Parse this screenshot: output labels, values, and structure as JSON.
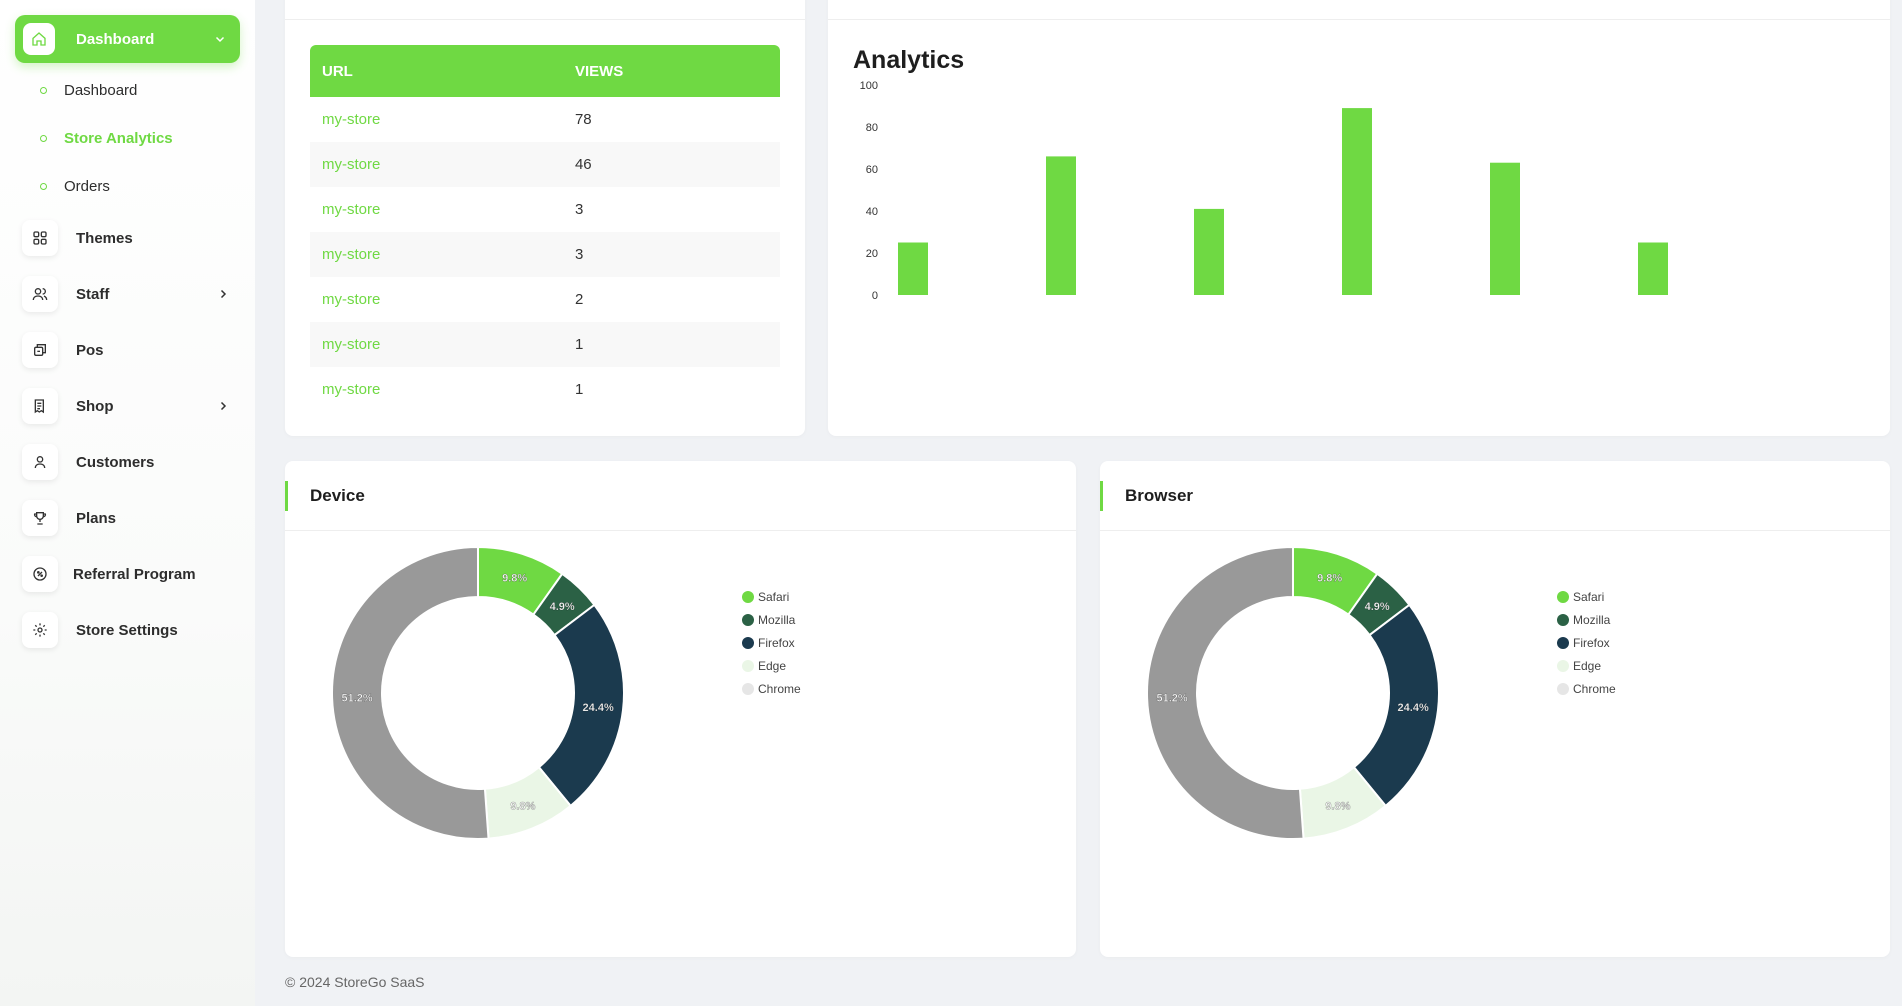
{
  "sidebar": {
    "active": {
      "label": "Dashboard",
      "icon": "home-icon"
    },
    "sub_items": [
      {
        "label": "Dashboard",
        "active": false
      },
      {
        "label": "Store Analytics",
        "active": true
      },
      {
        "label": "Orders",
        "active": false
      }
    ],
    "items": [
      {
        "label": "Themes",
        "icon": "grid-icon",
        "has_children": false
      },
      {
        "label": "Staff",
        "icon": "users-icon",
        "has_children": true
      },
      {
        "label": "Pos",
        "icon": "pos-icon",
        "has_children": false
      },
      {
        "label": "Shop",
        "icon": "receipt-icon",
        "has_children": true
      },
      {
        "label": "Customers",
        "icon": "user-icon",
        "has_children": false
      },
      {
        "label": "Plans",
        "icon": "trophy-icon",
        "has_children": false
      },
      {
        "label": "Referral Program",
        "icon": "discount-icon",
        "has_children": false
      },
      {
        "label": "Store Settings",
        "icon": "gear-icon",
        "has_children": false
      }
    ]
  },
  "url_table": {
    "headers": [
      "URL",
      "VIEWS"
    ],
    "rows": [
      {
        "url": "my-store",
        "views": "78"
      },
      {
        "url": "my-store",
        "views": "46"
      },
      {
        "url": "my-store",
        "views": "3"
      },
      {
        "url": "my-store",
        "views": "3"
      },
      {
        "url": "my-store",
        "views": "2"
      },
      {
        "url": "my-store",
        "views": "1"
      },
      {
        "url": "my-store",
        "views": "1"
      }
    ]
  },
  "analytics": {
    "title": "Analytics"
  },
  "device": {
    "title": "Device"
  },
  "browser": {
    "title": "Browser"
  },
  "chart_data": [
    {
      "type": "bar",
      "title": "Analytics",
      "categories": [
        "",
        "",
        "",
        "",
        "",
        ""
      ],
      "values": [
        25,
        66,
        41,
        89,
        63,
        25
      ],
      "ylim": [
        0,
        100
      ],
      "yticks": [
        0,
        20,
        40,
        60,
        80,
        100
      ],
      "color": "#6fd943"
    },
    {
      "type": "pie",
      "title": "Device",
      "labels": [
        "Safari",
        "Mozilla",
        "Firefox",
        "Edge",
        "Chrome"
      ],
      "values": [
        9.8,
        4.9,
        24.4,
        9.8,
        51.2
      ],
      "value_labels": [
        "9.8%",
        "4.9%",
        "24.4%",
        "9.8%",
        "51.2%"
      ],
      "colors": [
        "#6fd943",
        "#2b6145",
        "#1b3a4e",
        "#eaf6e6",
        "#999999"
      ],
      "legend_colors": [
        "#6fd943",
        "#2b6145",
        "#1b3a4e",
        "#eaf6e6",
        "#e6e6e6"
      ]
    },
    {
      "type": "pie",
      "title": "Browser",
      "labels": [
        "Safari",
        "Mozilla",
        "Firefox",
        "Edge",
        "Chrome"
      ],
      "values": [
        9.8,
        4.9,
        24.4,
        9.8,
        51.2
      ],
      "value_labels": [
        "9.8%",
        "4.9%",
        "24.4%",
        "9.8%",
        "51.2%"
      ],
      "colors": [
        "#6fd943",
        "#2b6145",
        "#1b3a4e",
        "#eaf6e6",
        "#999999"
      ],
      "legend_colors": [
        "#6fd943",
        "#2b6145",
        "#1b3a4e",
        "#eaf6e6",
        "#e6e6e6"
      ]
    }
  ],
  "footer": {
    "text": "© 2024 StoreGo SaaS"
  }
}
